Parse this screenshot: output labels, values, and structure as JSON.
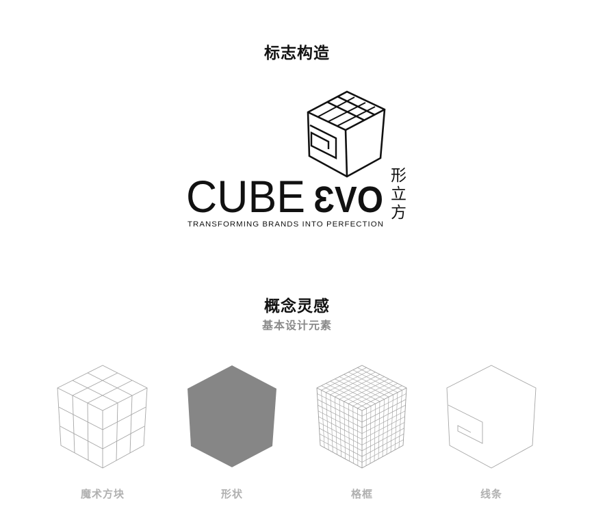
{
  "section1": {
    "title": "标志构造"
  },
  "logo": {
    "word_left": "CUBE",
    "word_right": "ƐVO",
    "tagline": "TRANSFORMING BRANDS INTO PERFECTION",
    "chinese_vertical": [
      "形",
      "立",
      "方"
    ],
    "icon": "cube-evo-logo-icon"
  },
  "section2": {
    "title": "概念灵感",
    "subtitle": "基本设计元素"
  },
  "elements": [
    {
      "caption": "魔术方块",
      "icon": "rubik-cube-icon"
    },
    {
      "caption": "形状",
      "icon": "solid-cube-icon"
    },
    {
      "caption": "格框",
      "icon": "grid-cube-icon"
    },
    {
      "caption": "线条",
      "icon": "line-cube-icon"
    }
  ],
  "colors": {
    "solid_cube": "#868686",
    "wire": "#9a9a9a",
    "caption": "#b0b0b0"
  }
}
